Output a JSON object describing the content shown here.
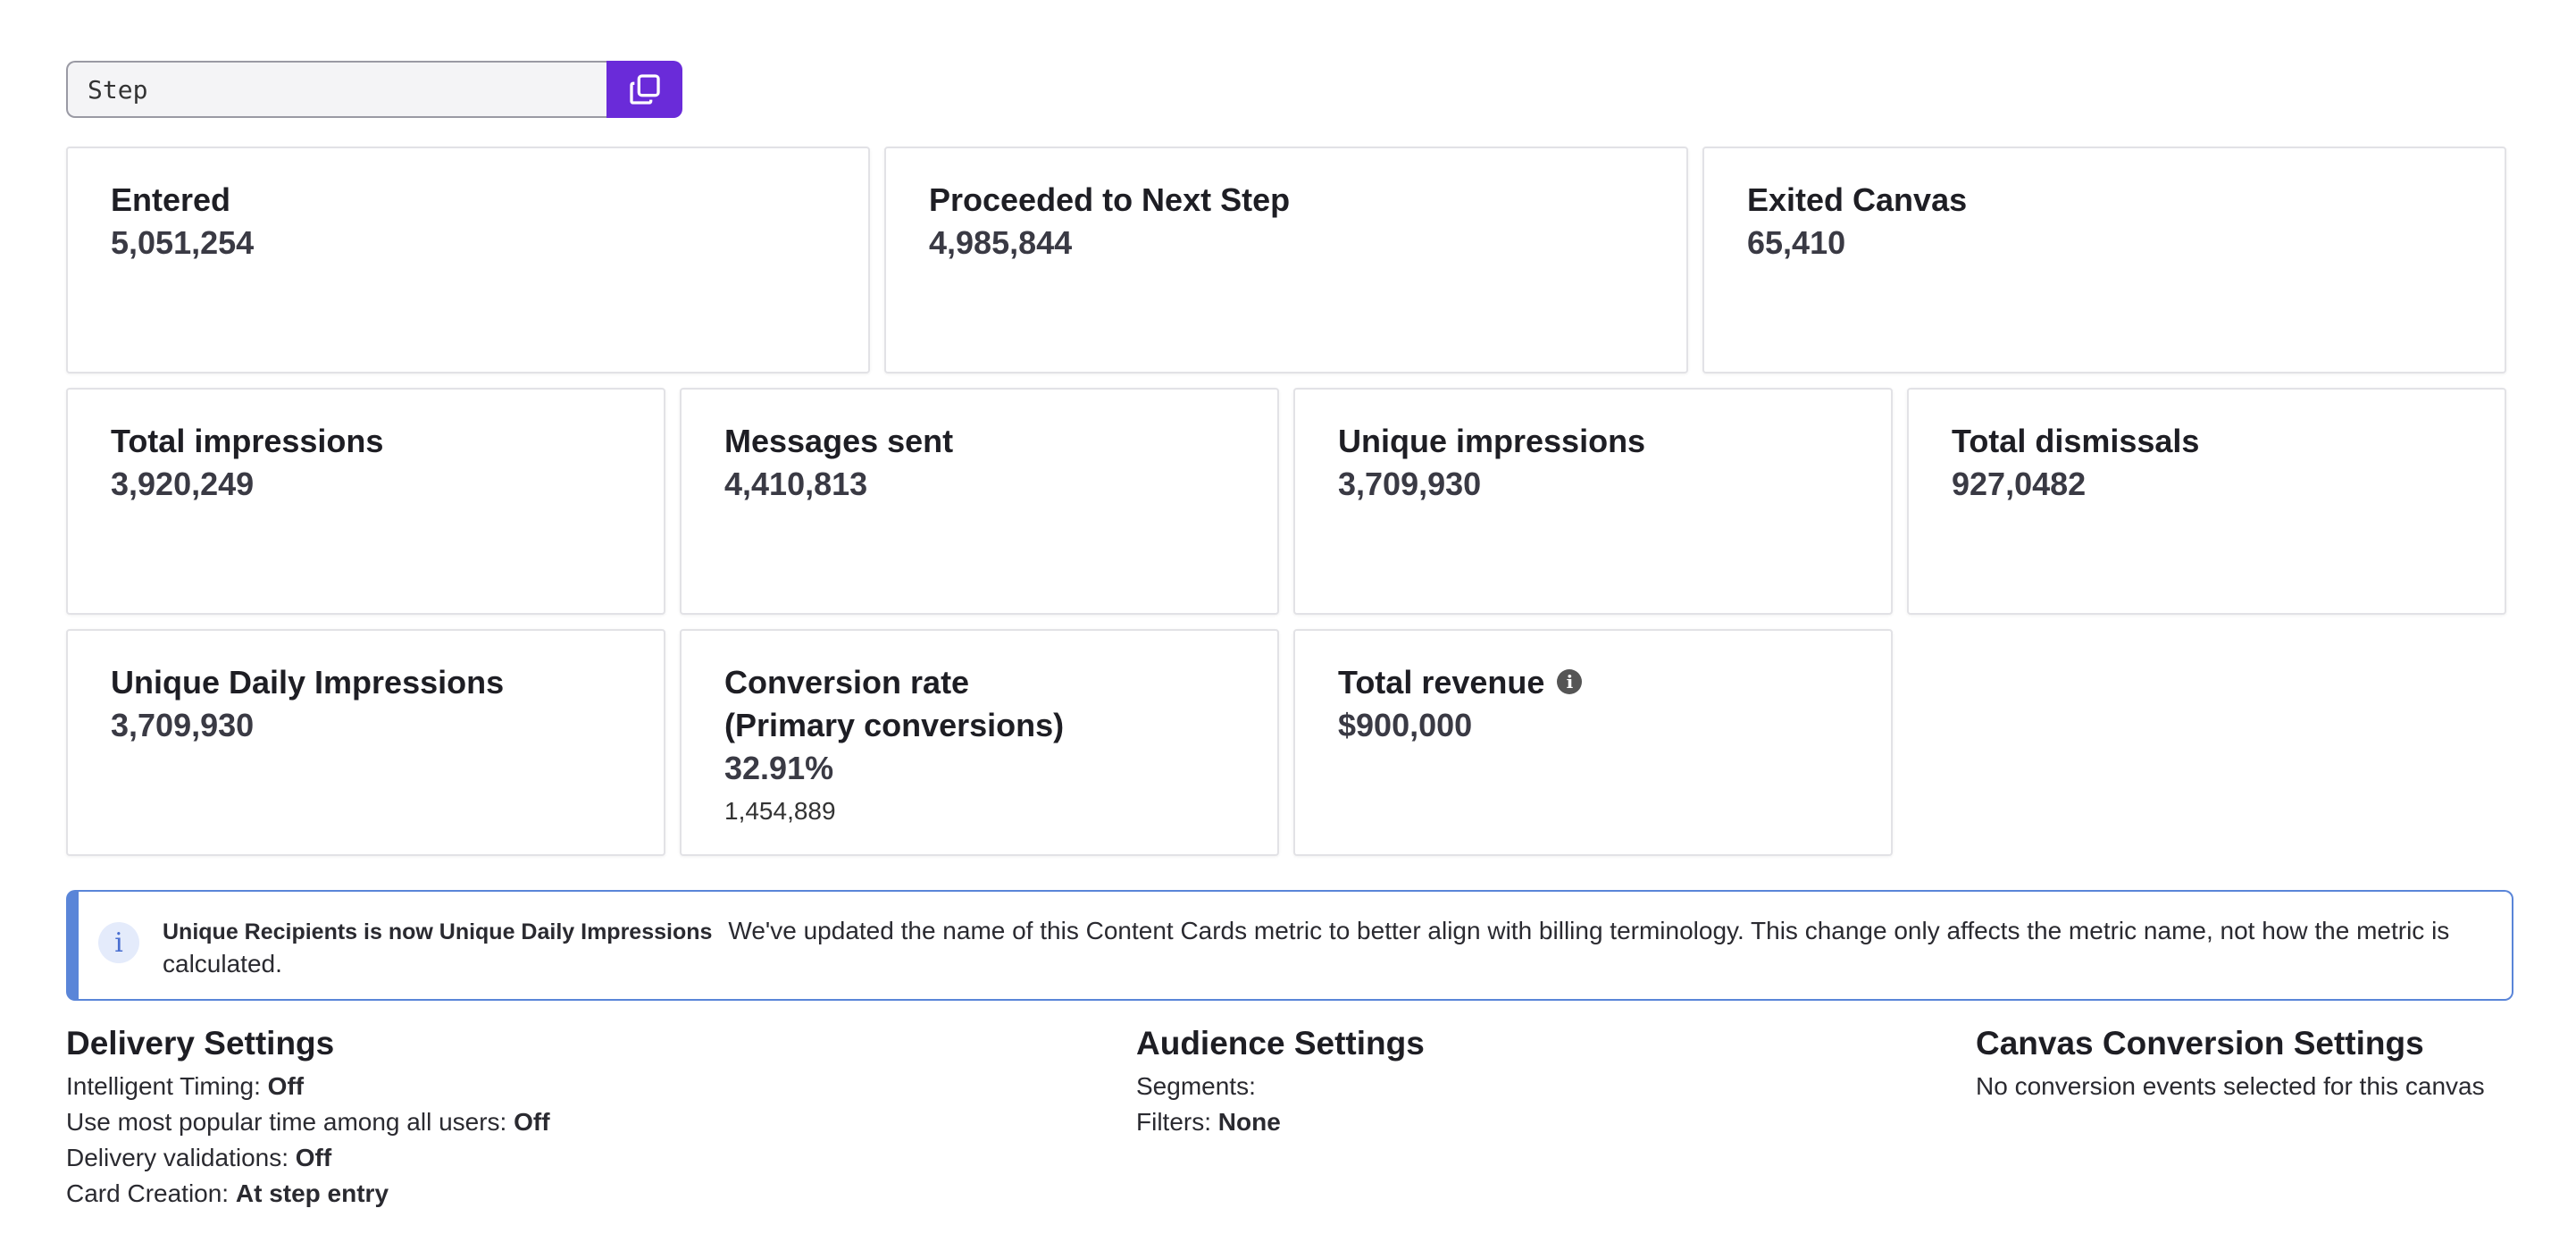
{
  "step_field": {
    "value": "Step"
  },
  "row1": [
    {
      "label": "Entered",
      "value": "5,051,254"
    },
    {
      "label": "Proceeded to Next Step",
      "value": "4,985,844"
    },
    {
      "label": "Exited Canvas",
      "value": "65,410"
    }
  ],
  "row2": [
    {
      "label": "Total impressions",
      "value": "3,920,249"
    },
    {
      "label": "Messages sent",
      "value": "4,410,813"
    },
    {
      "label": "Unique impressions",
      "value": "3,709,930"
    },
    {
      "label": "Total dismissals",
      "value": "927,0482"
    }
  ],
  "row3": [
    {
      "label": "Unique Daily Impressions",
      "value": "3,709,930"
    },
    {
      "label_line1": "Conversion rate",
      "label_line2": "(Primary conversions)",
      "value": "32.91%",
      "sub": "1,454,889"
    },
    {
      "label": "Total revenue",
      "value": "$900,000",
      "icon": "info-icon"
    }
  ],
  "banner": {
    "title": "Unique Recipients is now Unique Daily Impressions",
    "message": "We've updated the name of this Content Cards metric to better align with billing terminology. This change only affects the metric name, not how the metric is calculated."
  },
  "delivery": {
    "title": "Delivery Settings",
    "rows": [
      {
        "key": "Intelligent Timing: ",
        "value": "Off"
      },
      {
        "key": "Use most popular time among all users: ",
        "value": "Off"
      },
      {
        "key": "Delivery validations: ",
        "value": "Off"
      },
      {
        "key": "Card Creation: ",
        "value": "At step entry"
      }
    ]
  },
  "audience": {
    "title": "Audience Settings",
    "rows": [
      {
        "key": "Segments:",
        "value": ""
      },
      {
        "key": "Filters: ",
        "value": "None"
      }
    ]
  },
  "conversion": {
    "title": "Canvas Conversion Settings",
    "text": "No conversion events selected for this canvas"
  },
  "colors": {
    "accent": "#6a2bd9",
    "banner": "#5a85d8"
  }
}
